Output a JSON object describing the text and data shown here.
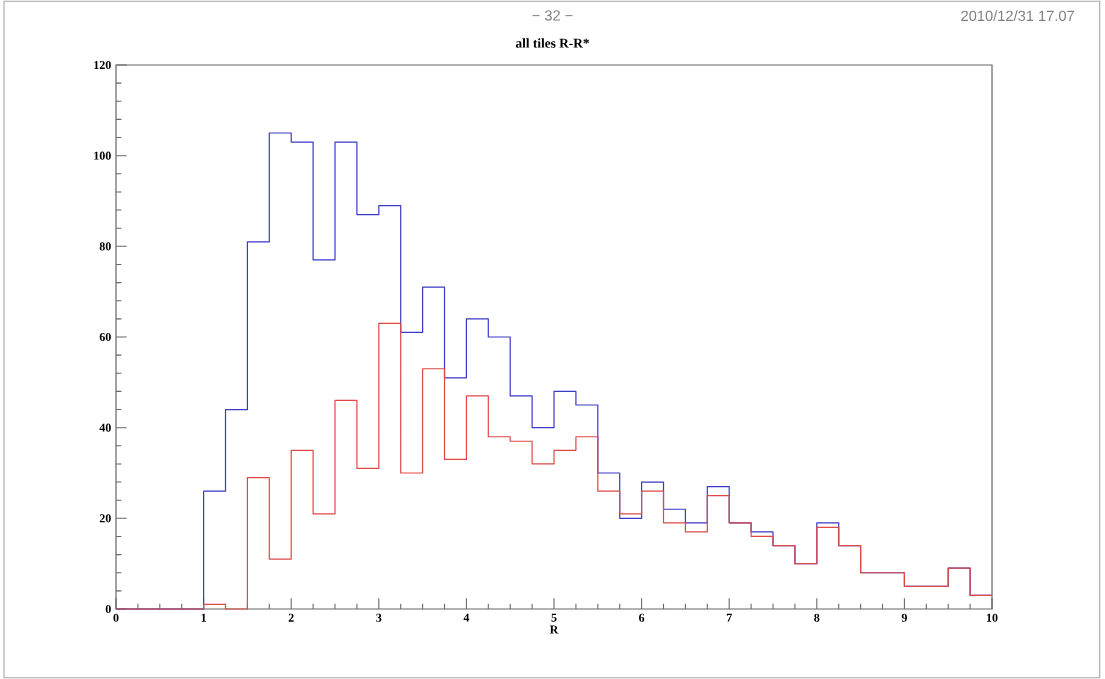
{
  "chart_data": {
    "type": "histogram",
    "title": "all tiles R-R*",
    "annotations": [
      "− 32 −",
      "2010/12/31   17.07"
    ],
    "xlabel": "R",
    "bins": [
      0,
      0.25,
      0.5,
      0.75,
      1,
      1.25,
      1.5,
      1.75,
      2,
      2.25,
      2.5,
      2.75,
      3,
      3.25,
      3.5,
      3.75,
      4,
      4.25,
      4.5,
      4.75,
      5,
      5.25,
      5.5,
      5.75,
      6,
      6.25,
      6.5,
      6.75,
      7,
      7.25,
      7.5,
      7.75,
      8,
      8.25,
      8.5,
      8.75,
      9,
      9.25,
      9.5,
      9.75,
      10
    ],
    "series": [
      {
        "color": "#3a3ac8",
        "values": [
          0,
          0,
          0,
          0,
          26,
          44,
          81,
          105,
          103,
          77,
          103,
          87,
          89,
          61,
          71,
          51,
          64,
          60,
          47,
          40,
          48,
          45,
          30,
          20,
          28,
          22,
          19,
          27,
          19,
          17,
          14,
          10,
          19,
          14,
          8,
          8,
          5,
          5,
          9,
          3
        ]
      },
      {
        "color": "#e04848",
        "values": [
          0,
          0,
          0,
          0,
          1,
          0,
          29,
          11,
          35,
          21,
          46,
          31,
          63,
          30,
          53,
          33,
          47,
          38,
          37,
          32,
          35,
          38,
          26,
          21,
          26,
          19,
          17,
          25,
          19,
          16,
          14,
          10,
          18,
          14,
          8,
          8,
          5,
          5,
          9,
          3
        ]
      }
    ],
    "xlim": [
      0,
      10
    ],
    "ylim": [
      0,
      120
    ],
    "xticks": [
      0,
      1,
      2,
      3,
      4,
      5,
      6,
      7,
      8,
      9,
      10
    ],
    "yticks": [
      0,
      20,
      40,
      60,
      80,
      100,
      120
    ]
  }
}
